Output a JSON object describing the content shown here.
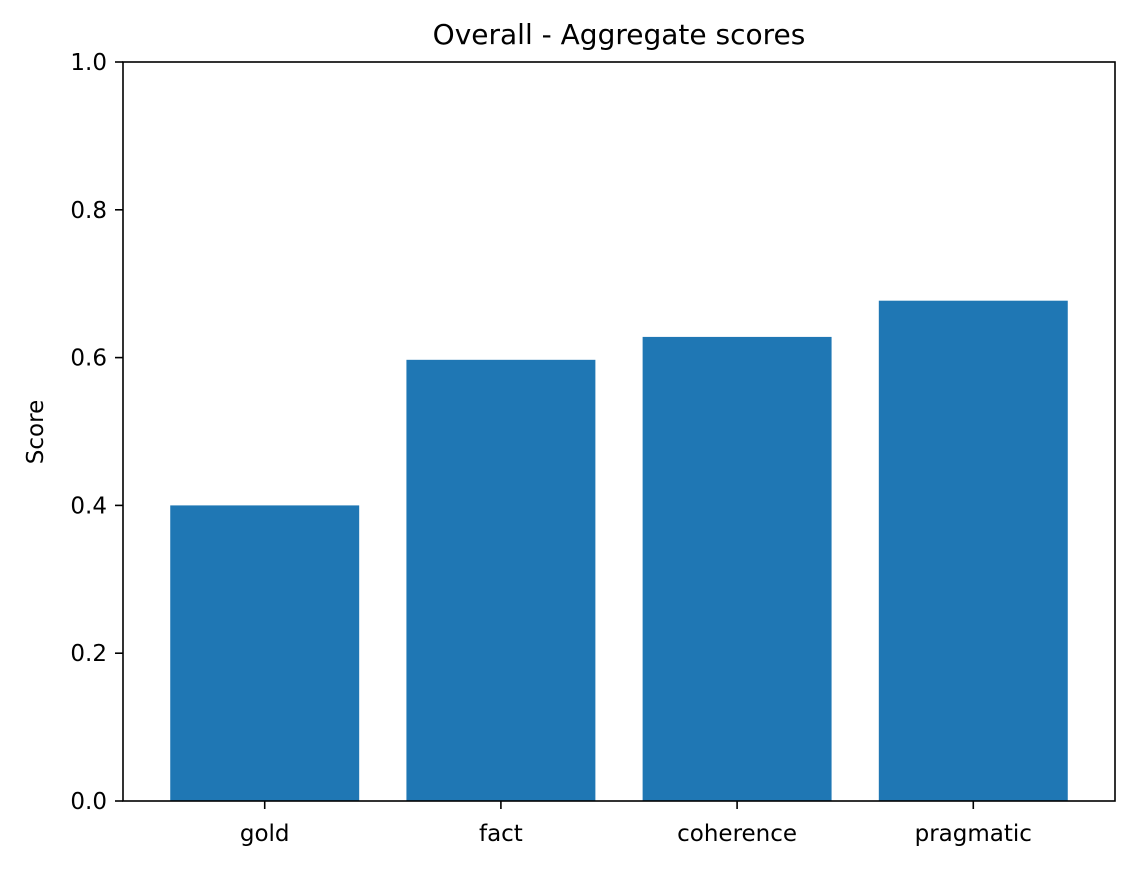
{
  "chart_data": {
    "type": "bar",
    "title": "Overall - Aggregate scores",
    "xlabel": "",
    "ylabel": "Score",
    "categories": [
      "gold",
      "fact",
      "coherence",
      "pragmatic"
    ],
    "values": [
      0.4,
      0.597,
      0.628,
      0.677
    ],
    "ylim": [
      0,
      1.0
    ],
    "yticks": [
      "0.0",
      "0.2",
      "0.4",
      "0.6",
      "0.8",
      "1.0"
    ],
    "grid": false,
    "legend": "none",
    "bar_color": "#1f77b4"
  }
}
